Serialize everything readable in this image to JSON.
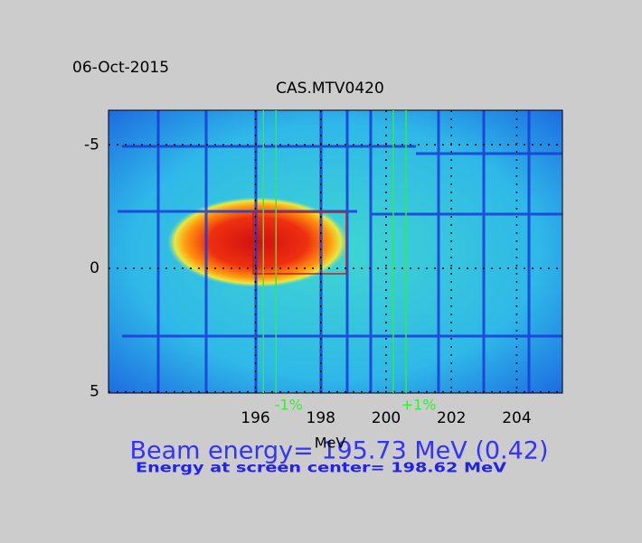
{
  "chart_data": {
    "type": "image",
    "date": "06-Oct-2015",
    "title": "CAS.MTV0420",
    "x_label": "MeV",
    "xlim": [
      191.5,
      205.4
    ],
    "xticks": [
      196,
      198,
      200,
      202,
      204
    ],
    "ylim": [
      5.05,
      -6.4
    ],
    "yticks": [
      -5,
      0,
      5
    ],
    "grid": true,
    "markers": [
      {
        "label": "-1%",
        "x": 196.63,
        "color": "#33ee33"
      },
      {
        "label": "+1%",
        "x": 200.61,
        "color": "#33ee33"
      }
    ],
    "beam_energy_text": "Beam energy= 195.73 MeV  (0.42)",
    "center_energy_text": "Energy at screen center= 198.62 MeV"
  }
}
